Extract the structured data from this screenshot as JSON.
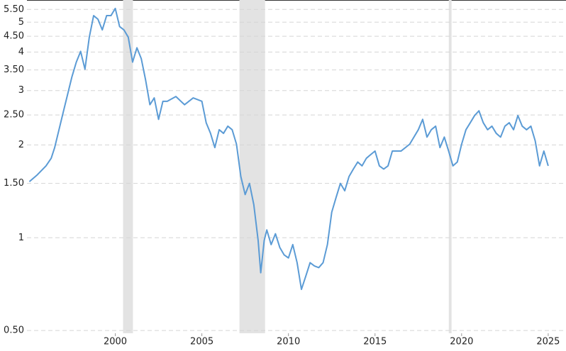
{
  "chart_data": {
    "type": "line",
    "log_y": true,
    "grid": true,
    "color": "#5b9bd5",
    "shade_color": "#e3e3e3",
    "xlim": [
      1994.9,
      2025.7
    ],
    "ylim": [
      0.49,
      5.9
    ],
    "xticks": [
      2000,
      2005,
      2010,
      2015,
      2020,
      2025
    ],
    "yticks": [
      {
        "value": 0.5,
        "label": "0.50"
      },
      1,
      {
        "value": 1.5,
        "label": "1.50"
      },
      2,
      {
        "value": 2.5,
        "label": "2.50"
      },
      3,
      {
        "value": 3.5,
        "label": "3.50"
      },
      4,
      {
        "value": 4.5,
        "label": "4.50"
      },
      5,
      {
        "value": 5.5,
        "label": "5.50"
      }
    ],
    "shaded_regions": [
      [
        2000.45,
        2001.02
      ],
      [
        2007.17,
        2008.65
      ],
      [
        2019.26,
        2019.42
      ]
    ],
    "x": [
      1995.04,
      1995.5,
      1996.0,
      1996.3,
      1996.5,
      1996.75,
      1997.0,
      1997.25,
      1997.5,
      1997.75,
      1998.0,
      1998.25,
      1998.5,
      1998.75,
      1999.0,
      1999.25,
      1999.5,
      1999.75,
      2000.0,
      2000.25,
      2000.5,
      2000.75,
      2001.0,
      2001.25,
      2001.5,
      2001.75,
      2002.0,
      2002.25,
      2002.5,
      2002.75,
      2003.0,
      2003.5,
      2004.0,
      2004.5,
      2005.0,
      2005.25,
      2005.5,
      2005.75,
      2006.0,
      2006.25,
      2006.5,
      2006.75,
      2007.0,
      2007.25,
      2007.5,
      2007.75,
      2008.0,
      2008.25,
      2008.4,
      2008.6,
      2008.75,
      2009.0,
      2009.25,
      2009.5,
      2009.75,
      2010.0,
      2010.25,
      2010.5,
      2010.75,
      2011.0,
      2011.25,
      2011.5,
      2011.75,
      2012.0,
      2012.25,
      2012.5,
      2012.75,
      2013.0,
      2013.25,
      2013.5,
      2013.75,
      2014.0,
      2014.25,
      2014.5,
      2014.75,
      2015.0,
      2015.25,
      2015.5,
      2015.75,
      2016.0,
      2016.5,
      2017.0,
      2017.5,
      2017.75,
      2018.0,
      2018.25,
      2018.5,
      2018.75,
      2019.0,
      2019.25,
      2019.5,
      2019.75,
      2020.0,
      2020.25,
      2020.5,
      2020.75,
      2021.0,
      2021.25,
      2021.5,
      2021.75,
      2022.0,
      2022.25,
      2022.5,
      2022.75,
      2023.0,
      2023.25,
      2023.5,
      2023.75,
      2024.0,
      2024.25,
      2024.5,
      2024.75,
      2025.0
    ],
    "values": [
      1.52,
      1.6,
      1.71,
      1.81,
      1.96,
      2.24,
      2.56,
      2.92,
      3.33,
      3.71,
      4.02,
      3.52,
      4.47,
      5.25,
      5.11,
      4.72,
      5.25,
      5.25,
      5.54,
      4.84,
      4.72,
      4.47,
      3.71,
      4.13,
      3.81,
      3.25,
      2.7,
      2.84,
      2.42,
      2.77,
      2.77,
      2.87,
      2.7,
      2.84,
      2.77,
      2.36,
      2.18,
      1.96,
      2.24,
      2.18,
      2.3,
      2.24,
      2.01,
      1.58,
      1.38,
      1.5,
      1.28,
      0.98,
      0.77,
      0.98,
      1.06,
      0.95,
      1.03,
      0.93,
      0.88,
      0.86,
      0.95,
      0.83,
      0.68,
      0.75,
      0.83,
      0.81,
      0.8,
      0.83,
      0.95,
      1.21,
      1.35,
      1.5,
      1.42,
      1.58,
      1.67,
      1.76,
      1.71,
      1.81,
      1.86,
      1.91,
      1.71,
      1.67,
      1.71,
      1.91,
      1.91,
      2.01,
      2.24,
      2.42,
      2.12,
      2.24,
      2.3,
      1.96,
      2.12,
      1.91,
      1.71,
      1.76,
      2.01,
      2.24,
      2.36,
      2.49,
      2.58,
      2.36,
      2.24,
      2.3,
      2.18,
      2.12,
      2.3,
      2.36,
      2.24,
      2.49,
      2.3,
      2.24,
      2.3,
      2.06,
      1.71,
      1.91,
      1.71
    ]
  }
}
